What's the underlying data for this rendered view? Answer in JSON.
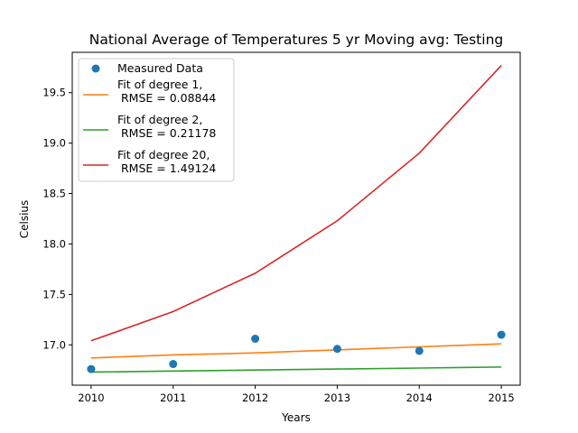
{
  "chart_data": {
    "type": "line",
    "title": "National Average of Temperatures 5 yr Moving avg: Testing",
    "xlabel": "Years",
    "ylabel": "Celsius",
    "xlim": [
      2009.77,
      2015.23
    ],
    "ylim": [
      16.6,
      19.9
    ],
    "x_ticks": [
      2010,
      2011,
      2012,
      2013,
      2014,
      2015
    ],
    "y_ticks": [
      17.0,
      17.5,
      18.0,
      18.5,
      19.0,
      19.5
    ],
    "y_tick_labels": [
      "17.0",
      "17.5",
      "18.0",
      "18.5",
      "19.0",
      "19.5"
    ],
    "grid": false,
    "legend_position": "top-left",
    "x": [
      2010,
      2011,
      2012,
      2013,
      2014,
      2015
    ],
    "scatter": {
      "name": " Measured Data",
      "color": "#1f77b4",
      "values": [
        16.76,
        16.81,
        17.06,
        16.96,
        16.94,
        17.1
      ]
    },
    "series": [
      {
        "name_line1": "Fit of degree 1,",
        "name_line2": " RMSE = 0.08844",
        "color": "#ff7f0e",
        "values": [
          16.87,
          16.9,
          16.92,
          16.95,
          16.98,
          17.01
        ]
      },
      {
        "name_line1": "Fit of degree 2,",
        "name_line2": " RMSE = 0.21178",
        "color": "#2ca02c",
        "values": [
          16.73,
          16.74,
          16.75,
          16.76,
          16.77,
          16.78
        ]
      },
      {
        "name_line1": "Fit of degree 20,",
        "name_line2": " RMSE = 1.49124",
        "color": "#d62728",
        "values": [
          17.04,
          17.33,
          17.71,
          18.23,
          18.9,
          19.77
        ]
      }
    ]
  }
}
